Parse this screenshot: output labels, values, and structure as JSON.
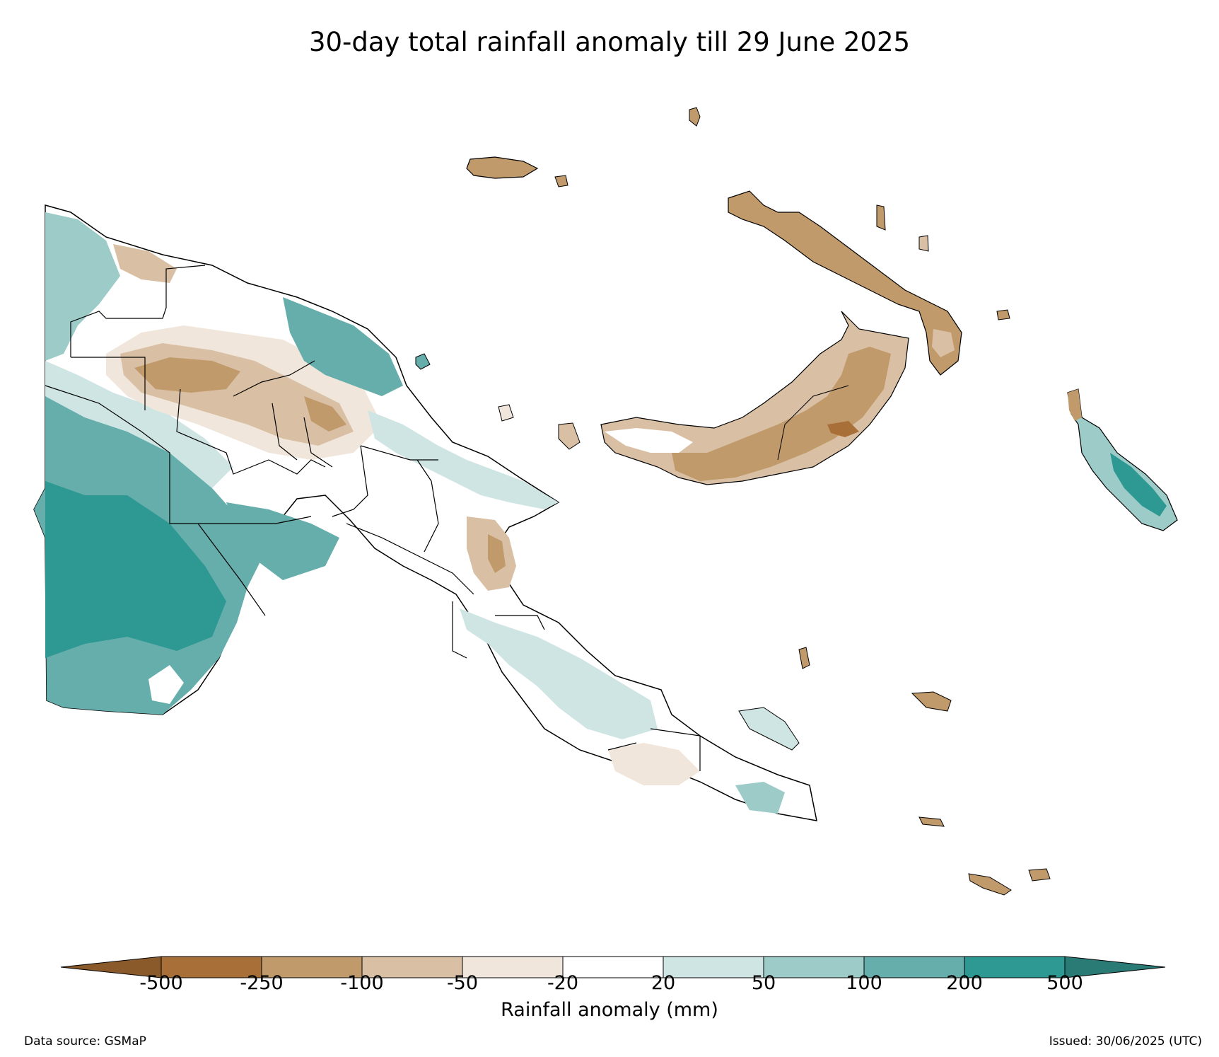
{
  "title": "30-day total rainfall anomaly till 29 June 2025",
  "colorbar": {
    "label": "Rainfall anomaly (mm)",
    "ticks": [
      "-500",
      "-250",
      "-100",
      "-50",
      "-20",
      "20",
      "50",
      "100",
      "200",
      "500"
    ],
    "bins": [
      {
        "range": "< -500",
        "color": "#8b5a2b"
      },
      {
        "range": "-500 to -250",
        "color": "#a87038"
      },
      {
        "range": "-250 to -100",
        "color": "#c19a6b"
      },
      {
        "range": "-100 to -50",
        "color": "#d9c0a5"
      },
      {
        "range": "-50 to -20",
        "color": "#f0e6db"
      },
      {
        "range": "-20 to 20",
        "color": "#ffffff"
      },
      {
        "range": "20 to 50",
        "color": "#cfe5e3"
      },
      {
        "range": "50 to 100",
        "color": "#9ccbc8"
      },
      {
        "range": "100 to 200",
        "color": "#66aeab"
      },
      {
        "range": "200 to 500",
        "color": "#2e9893"
      },
      {
        "range": "> 500",
        "color": "#2a7a76"
      }
    ]
  },
  "footer": {
    "source": "Data source: GSMaP",
    "issued": "Issued: 30/06/2025 (UTC)"
  },
  "map_regions": [
    {
      "name": "western-province-south",
      "anomaly_class": "200 to 500"
    },
    {
      "name": "western-province-north",
      "anomaly_class": "50 to 100"
    },
    {
      "name": "highlands",
      "anomaly_class": "-250 to -100"
    },
    {
      "name": "madang-coast",
      "anomaly_class": "100 to 200"
    },
    {
      "name": "morobe",
      "anomaly_class": "-100 to -50"
    },
    {
      "name": "central-papuan-peninsula",
      "anomaly_class": "20 to 50"
    },
    {
      "name": "new-britain-east",
      "anomaly_class": "-250 to -100"
    },
    {
      "name": "new-britain-west",
      "anomaly_class": "-100 to -50"
    },
    {
      "name": "new-ireland",
      "anomaly_class": "-250 to -100"
    },
    {
      "name": "manus",
      "anomaly_class": "-250 to -100"
    },
    {
      "name": "bougainville",
      "anomaly_class": "100 to 200"
    },
    {
      "name": "milne-bay-islands",
      "anomaly_class": "-250 to -100"
    }
  ]
}
